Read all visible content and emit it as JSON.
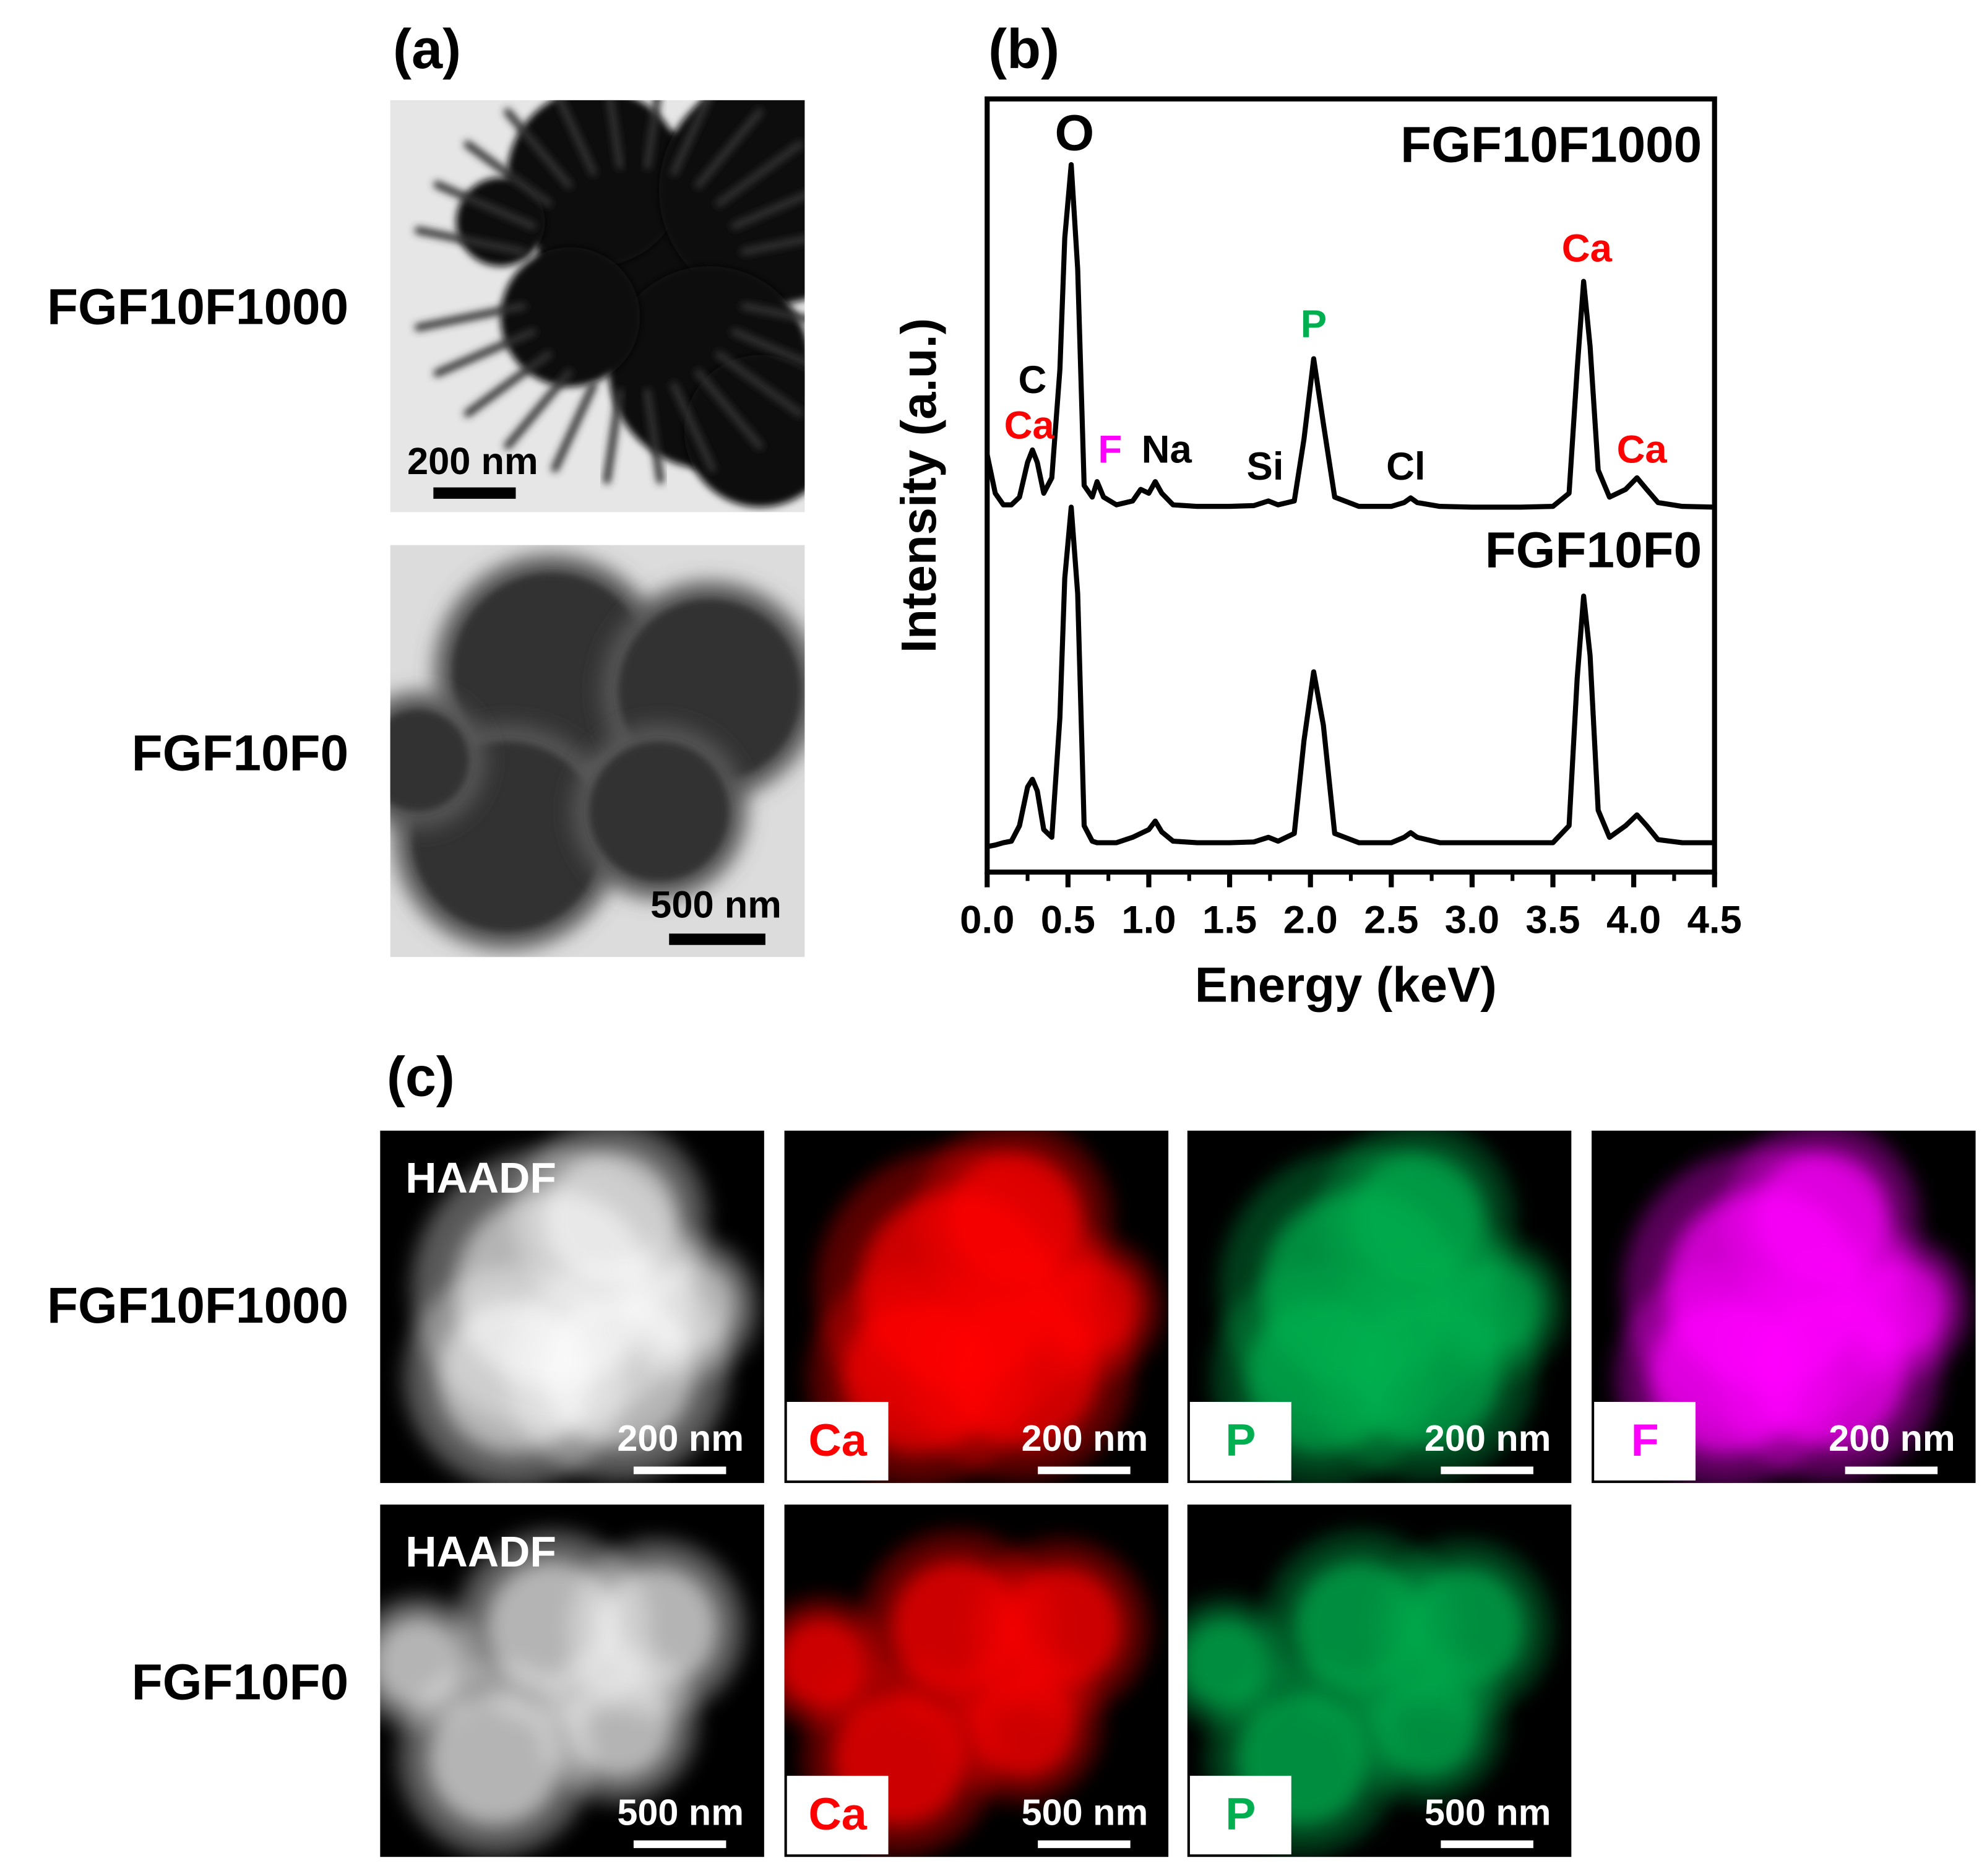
{
  "panel_a": {
    "label": "(a)",
    "rows": [
      {
        "name": "FGF10F1000",
        "scale_bar": "200 nm"
      },
      {
        "name": "FGF10F0",
        "scale_bar": "500 nm"
      }
    ]
  },
  "chart_data": {
    "type": "line",
    "panel_label": "(b)",
    "xlabel": "Energy (keV)",
    "ylabel": "Intensity (a.u.)",
    "xlim": [
      0,
      4.5
    ],
    "xticks": [
      {
        "value": 0,
        "label": "0.0"
      },
      0.5,
      {
        "value": 1,
        "label": "1.0"
      },
      1.5,
      {
        "value": 2,
        "label": "2.0"
      },
      2.5,
      {
        "value": 3,
        "label": "3.0"
      },
      3.5,
      {
        "value": 4,
        "label": "4.0"
      },
      4.5
    ],
    "ylim": [
      0,
      100
    ],
    "x": [
      0,
      0.05,
      0.1,
      0.15,
      0.2,
      0.25,
      0.28,
      0.31,
      0.35,
      0.4,
      0.45,
      0.48,
      0.52,
      0.56,
      0.6,
      0.65,
      0.68,
      0.72,
      0.8,
      0.9,
      0.95,
      1.0,
      1.04,
      1.08,
      1.15,
      1.3,
      1.5,
      1.65,
      1.74,
      1.8,
      1.9,
      1.96,
      2.02,
      2.08,
      2.15,
      2.3,
      2.5,
      2.58,
      2.62,
      2.66,
      2.8,
      3.0,
      3.3,
      3.5,
      3.6,
      3.65,
      3.69,
      3.73,
      3.78,
      3.85,
      3.95,
      4.02,
      4.08,
      4.15,
      4.3,
      4.5
    ],
    "series": [
      {
        "name": "FGF10F1000",
        "color": "#000000",
        "values": [
          54,
          49,
          47.5,
          47.5,
          48.5,
          53,
          54.6,
          53,
          49,
          51,
          65,
          82,
          91.5,
          78,
          50,
          48.5,
          50.5,
          48.5,
          47.5,
          48,
          49.5,
          49,
          50.5,
          49,
          47.5,
          47.3,
          47.3,
          47.4,
          48,
          47.5,
          48,
          56,
          66.4,
          58,
          48.5,
          47.3,
          47.3,
          47.8,
          48.4,
          47.8,
          47.3,
          47.2,
          47.2,
          47.3,
          49,
          65,
          76.4,
          68,
          52,
          48.5,
          49.5,
          51,
          49.5,
          47.8,
          47.3,
          47.2
        ]
      },
      {
        "name": "FGF10F0",
        "color": "#000000",
        "values": [
          3.3,
          3.5,
          3.8,
          4,
          6,
          11,
          12,
          10.5,
          5.5,
          4.5,
          20,
          38,
          47.2,
          36,
          6,
          4,
          3.8,
          3.8,
          3.8,
          4.5,
          5,
          5.5,
          6.6,
          5.2,
          4,
          3.8,
          3.8,
          3.9,
          4.5,
          4,
          5,
          17,
          25.9,
          19,
          5,
          3.8,
          3.8,
          4.5,
          5.1,
          4.5,
          3.8,
          3.8,
          3.8,
          3.8,
          6,
          25,
          35.7,
          28,
          8,
          4.5,
          6,
          7.4,
          6,
          4.2,
          3.8,
          3.8
        ]
      }
    ],
    "annotations": [
      {
        "text": "O",
        "x": 0.54,
        "y": 95.1,
        "color": "#000000"
      },
      {
        "text": "C",
        "x": 0.28,
        "y": 63.3,
        "color": "#000000"
      },
      {
        "text": "Ca",
        "x": 0.26,
        "y": 57.4,
        "color": "#ff0000"
      },
      {
        "text": "F",
        "x": 0.76,
        "y": 54.3,
        "color": "#ff00ff"
      },
      {
        "text": "Na",
        "x": 1.11,
        "y": 54.3,
        "color": "#000000"
      },
      {
        "text": "Si",
        "x": 1.72,
        "y": 52.1,
        "color": "#000000"
      },
      {
        "text": "P",
        "x": 2.02,
        "y": 70.5,
        "color": "#00b050"
      },
      {
        "text": "Cl",
        "x": 2.59,
        "y": 52.1,
        "color": "#000000"
      },
      {
        "text": "Ca",
        "x": 3.71,
        "y": 80.3,
        "color": "#ff0000"
      },
      {
        "text": "Ca",
        "x": 4.05,
        "y": 54.3,
        "color": "#ff0000"
      }
    ]
  },
  "panel_c": {
    "label": "(c)",
    "rows": [
      {
        "name": "FGF10F1000",
        "maps": [
          {
            "label": "HAADF",
            "scale_bar": "200 nm"
          },
          {
            "label": "Ca",
            "color": "#ff0000",
            "scale_bar": "200 nm"
          },
          {
            "label": "P",
            "color": "#00b050",
            "scale_bar": "200 nm"
          },
          {
            "label": "F",
            "color": "#ff00ff",
            "scale_bar": "200 nm"
          }
        ]
      },
      {
        "name": "FGF10F0",
        "maps": [
          {
            "label": "HAADF",
            "scale_bar": "500 nm"
          },
          {
            "label": "Ca",
            "color": "#ff0000",
            "scale_bar": "500 nm"
          },
          {
            "label": "P",
            "color": "#00b050",
            "scale_bar": "500 nm"
          }
        ]
      }
    ]
  }
}
